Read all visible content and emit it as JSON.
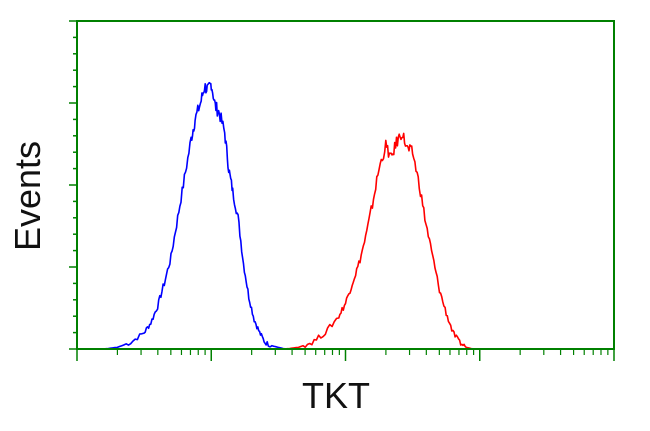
{
  "chart_data": {
    "type": "line",
    "title": "",
    "xlabel": "TKT",
    "ylabel": "Events",
    "x_scale": "log",
    "x_decades": 4,
    "xlim": [
      0,
      4
    ],
    "ylim": [
      0,
      1
    ],
    "grid": false,
    "legend": "none",
    "tick_labels_x": [],
    "tick_labels_y": [],
    "series": [
      {
        "color": "#0000ff",
        "x": [
          0.0,
          0.1,
          0.2,
          0.3,
          0.4,
          0.5,
          0.55,
          0.6,
          0.65,
          0.7,
          0.75,
          0.8,
          0.85,
          0.88,
          0.92,
          0.95,
          0.98,
          1.0,
          1.03,
          1.06,
          1.1,
          1.13,
          1.16,
          1.2,
          1.24,
          1.28,
          1.32,
          1.36,
          1.4,
          1.45,
          1.5,
          1.55,
          1.6
        ],
        "y": [
          0.0,
          0.0,
          0.0,
          0.005,
          0.02,
          0.05,
          0.08,
          0.13,
          0.2,
          0.28,
          0.4,
          0.52,
          0.64,
          0.7,
          0.75,
          0.8,
          0.79,
          0.81,
          0.74,
          0.72,
          0.66,
          0.55,
          0.48,
          0.4,
          0.26,
          0.16,
          0.09,
          0.05,
          0.02,
          0.01,
          0.005,
          0.0,
          0.0
        ]
      },
      {
        "color": "#ff0000",
        "x": [
          1.55,
          1.65,
          1.75,
          1.85,
          1.95,
          2.0,
          2.05,
          2.1,
          2.15,
          2.2,
          2.25,
          2.3,
          2.34,
          2.38,
          2.42,
          2.46,
          2.5,
          2.55,
          2.6,
          2.65,
          2.7,
          2.75,
          2.8,
          2.85,
          2.9,
          2.95,
          3.0
        ],
        "y": [
          0.0,
          0.005,
          0.02,
          0.05,
          0.1,
          0.14,
          0.2,
          0.26,
          0.34,
          0.44,
          0.55,
          0.62,
          0.58,
          0.63,
          0.66,
          0.61,
          0.6,
          0.5,
          0.38,
          0.28,
          0.18,
          0.11,
          0.05,
          0.02,
          0.005,
          0.0,
          0.0
        ]
      }
    ]
  },
  "style": {
    "axis_color": "#008000",
    "text_color": "#111111",
    "background": "#ffffff"
  }
}
